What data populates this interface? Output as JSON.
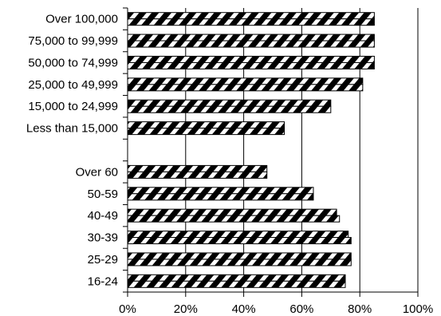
{
  "chart_data": {
    "type": "bar",
    "orientation": "horizontal",
    "title": "",
    "xlabel": "",
    "ylabel": "",
    "xlim": [
      0,
      100
    ],
    "x_ticks": [
      "0%",
      "20%",
      "40%",
      "60%",
      "80%",
      "100%"
    ],
    "grid": true,
    "legend": "none",
    "colors": {
      "bar_fill": "#ffffff",
      "stripe": "#000000",
      "outline": "#000000"
    },
    "categories": [
      "Over 100,000",
      "75,000 to 99,999",
      "50,000 to 74,999",
      "25,000 to 49,999",
      "15,000 to 24,999",
      "Less than 15,000",
      "",
      "Over 60",
      "50-59",
      "40-49",
      "30-39",
      "25-29",
      "16-24"
    ],
    "series": [
      {
        "values": [
          85,
          85,
          85,
          81,
          70,
          54,
          null,
          48,
          64,
          72,
          76,
          77,
          75
        ]
      },
      {
        "values": [
          85,
          85,
          85,
          81,
          70,
          54,
          null,
          48,
          64,
          73,
          77,
          77,
          75
        ]
      }
    ]
  }
}
